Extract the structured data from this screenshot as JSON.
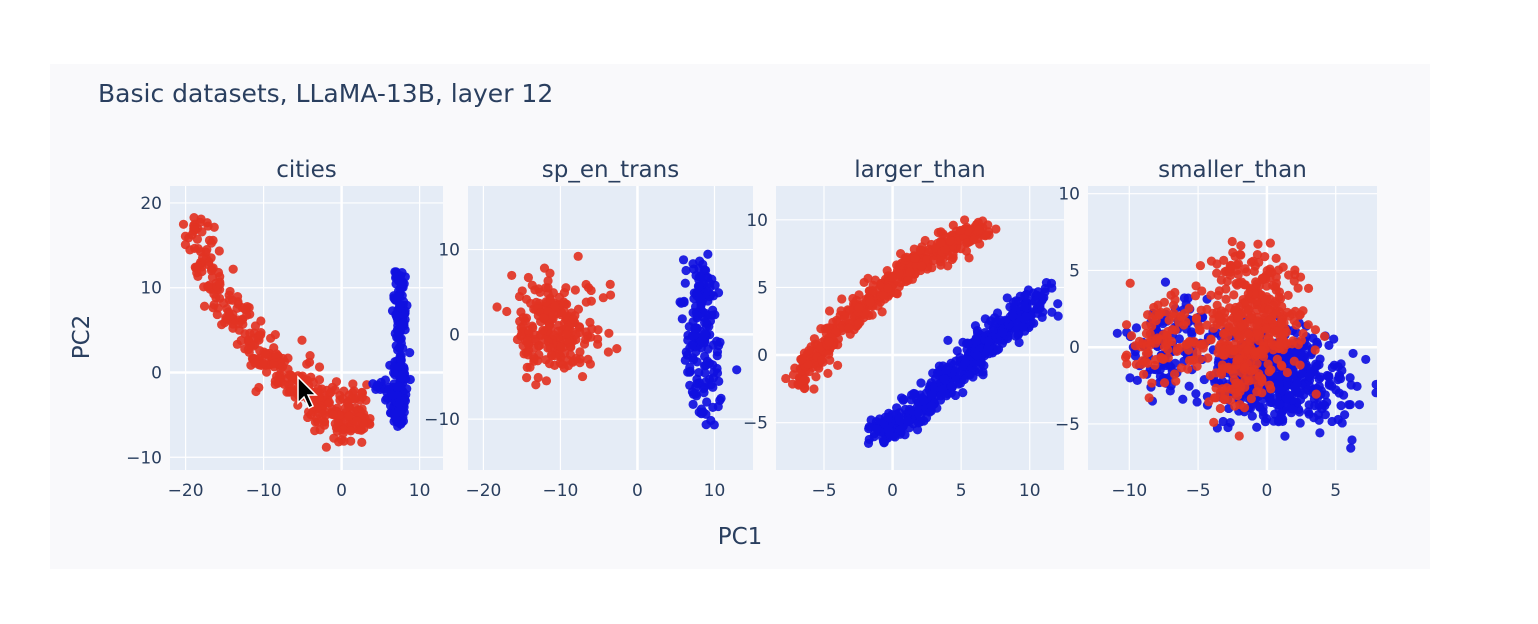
{
  "title": "Basic datasets, LLaMA-13B, layer 12",
  "xlabel": "PC1",
  "ylabel": "PC2",
  "colors": {
    "plot_bg": "#e5ecf6",
    "grid": "#ffffff",
    "class_a": "#e23323",
    "class_b": "#1010e0"
  },
  "chart_data": [
    {
      "type": "scatter",
      "title": "cities",
      "xlim": [
        -22,
        13
      ],
      "ylim": [
        -11.5,
        22
      ],
      "xticks": [
        -20,
        -10,
        0,
        10
      ],
      "yticks": [
        -10,
        0,
        10,
        20
      ],
      "xtick_labels": [
        "−20",
        "−10",
        "0",
        "10"
      ],
      "ytick_labels": [
        "−10",
        "0",
        "10",
        "20"
      ],
      "clusters": [
        {
          "color": "class_a",
          "n": 320,
          "path": [
            [
              -19,
              18
            ],
            [
              -16,
              10
            ],
            [
              -11,
              3
            ],
            [
              -5,
              -2
            ],
            [
              0,
              -6
            ],
            [
              3,
              -5
            ]
          ],
          "spread": [
            1.8,
            2.2
          ]
        },
        {
          "color": "class_a",
          "n": 70,
          "path": [
            [
              -8,
              0
            ],
            [
              -3,
              -4
            ],
            [
              2,
              -2
            ]
          ],
          "spread": [
            2.5,
            2.5
          ]
        },
        {
          "color": "class_b",
          "n": 200,
          "path": [
            [
              7.5,
              12
            ],
            [
              7.5,
              0
            ],
            [
              7,
              -6
            ]
          ],
          "spread": [
            0.8,
            1.6
          ]
        },
        {
          "color": "class_b",
          "n": 15,
          "path": [
            [
              4.5,
              -1
            ],
            [
              6,
              -3
            ]
          ],
          "spread": [
            0.8,
            1.0
          ]
        }
      ]
    },
    {
      "type": "scatter",
      "title": "sp_en_trans",
      "xlim": [
        -22,
        15
      ],
      "ylim": [
        -16,
        17.5
      ],
      "xticks": [
        -20,
        -10,
        0,
        10
      ],
      "yticks": [
        -10,
        0,
        10
      ],
      "xtick_labels": [
        "−20",
        "−10",
        "0",
        "10"
      ],
      "ytick_labels": [
        "−10",
        "0",
        "10"
      ],
      "clusters": [
        {
          "color": "class_a",
          "n": 230,
          "path": [
            [
              -10,
              1
            ],
            [
              -11,
              0
            ]
          ],
          "spread": [
            5.0,
            5.5
          ]
        },
        {
          "color": "class_b",
          "n": 170,
          "path": [
            [
              8,
              8
            ],
            [
              8,
              0
            ],
            [
              9,
              -8
            ]
          ],
          "spread": [
            2.0,
            2.8
          ]
        }
      ]
    },
    {
      "type": "scatter",
      "title": "larger_than",
      "xlim": [
        -8.5,
        12.5
      ],
      "ylim": [
        -8.5,
        12.5
      ],
      "xticks": [
        -5,
        0,
        5,
        10
      ],
      "yticks": [
        -5,
        0,
        5,
        10
      ],
      "xtick_labels": [
        "−5",
        "0",
        "5",
        "10"
      ],
      "ytick_labels": [
        "−5",
        "0",
        "5",
        "10"
      ],
      "clusters": [
        {
          "color": "class_a",
          "n": 450,
          "path": [
            [
              -7,
              -2
            ],
            [
              -3,
              3
            ],
            [
              2,
              7
            ],
            [
              7,
              9.5
            ]
          ],
          "spread": [
            0.9,
            0.9
          ]
        },
        {
          "color": "class_b",
          "n": 500,
          "path": [
            [
              -1,
              -6
            ],
            [
              3,
              -3
            ],
            [
              7,
              1
            ],
            [
              11,
              4.5
            ]
          ],
          "spread": [
            1.0,
            1.0
          ]
        }
      ]
    },
    {
      "type": "scatter",
      "title": "smaller_than",
      "xlim": [
        -13,
        8
      ],
      "ylim": [
        -8,
        10.5
      ],
      "xticks": [
        -10,
        -5,
        0,
        5
      ],
      "yticks": [
        -5,
        0,
        5,
        10
      ],
      "xtick_labels": [
        "−10",
        "−5",
        "0",
        "5"
      ],
      "ytick_labels": [
        "−5",
        "0",
        "5",
        "10"
      ],
      "clusters": [
        {
          "color": "class_b",
          "n": 500,
          "path": [
            [
              2,
              -1
            ],
            [
              -2,
              -2
            ],
            [
              5,
              -3
            ]
          ],
          "spread": [
            3.0,
            2.6
          ]
        },
        {
          "color": "class_b",
          "n": 120,
          "path": [
            [
              -9,
              -1
            ],
            [
              -5,
              1
            ]
          ],
          "spread": [
            2.2,
            2.2
          ]
        },
        {
          "color": "class_a",
          "n": 420,
          "path": [
            [
              -2,
              5
            ],
            [
              0,
              1
            ],
            [
              -3,
              -2
            ]
          ],
          "spread": [
            3.0,
            2.5
          ]
        },
        {
          "color": "class_a",
          "n": 100,
          "path": [
            [
              -9,
              -1
            ],
            [
              -6,
              2
            ]
          ],
          "spread": [
            2.0,
            2.0
          ]
        }
      ]
    }
  ]
}
